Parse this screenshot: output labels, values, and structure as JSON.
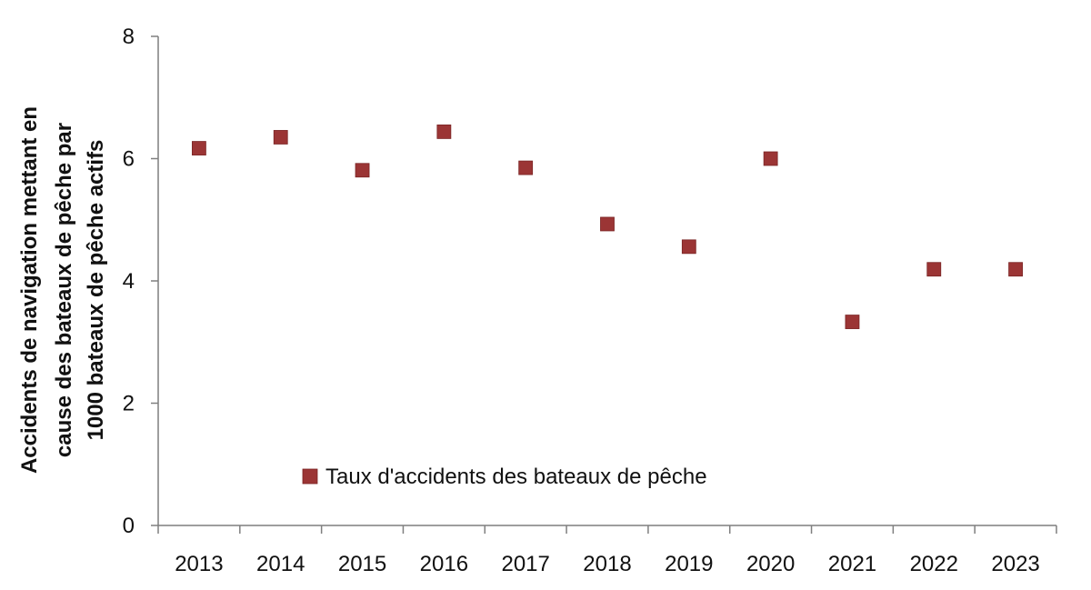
{
  "chart_data": {
    "type": "scatter",
    "title": "",
    "xlabel": "",
    "ylabel_lines": [
      "Accidents de navigation mettant en",
      "cause des bateaux de pêche par",
      "1000 bateaux de pêche actifs"
    ],
    "categories": [
      "2013",
      "2014",
      "2015",
      "2016",
      "2017",
      "2018",
      "2019",
      "2020",
      "2021",
      "2022",
      "2023"
    ],
    "series": [
      {
        "name": "Taux d'accidents des bateaux de pêche",
        "color": "#9b3535",
        "marker": "square",
        "values": [
          6.17,
          6.35,
          5.81,
          6.44,
          5.85,
          4.93,
          4.56,
          6.0,
          3.33,
          4.19,
          4.19
        ]
      }
    ],
    "ylim": [
      0,
      8
    ],
    "yticks": [
      "0",
      "2",
      "4",
      "6",
      "8"
    ],
    "grid": false,
    "legend_position": "bottom-center-inside"
  }
}
